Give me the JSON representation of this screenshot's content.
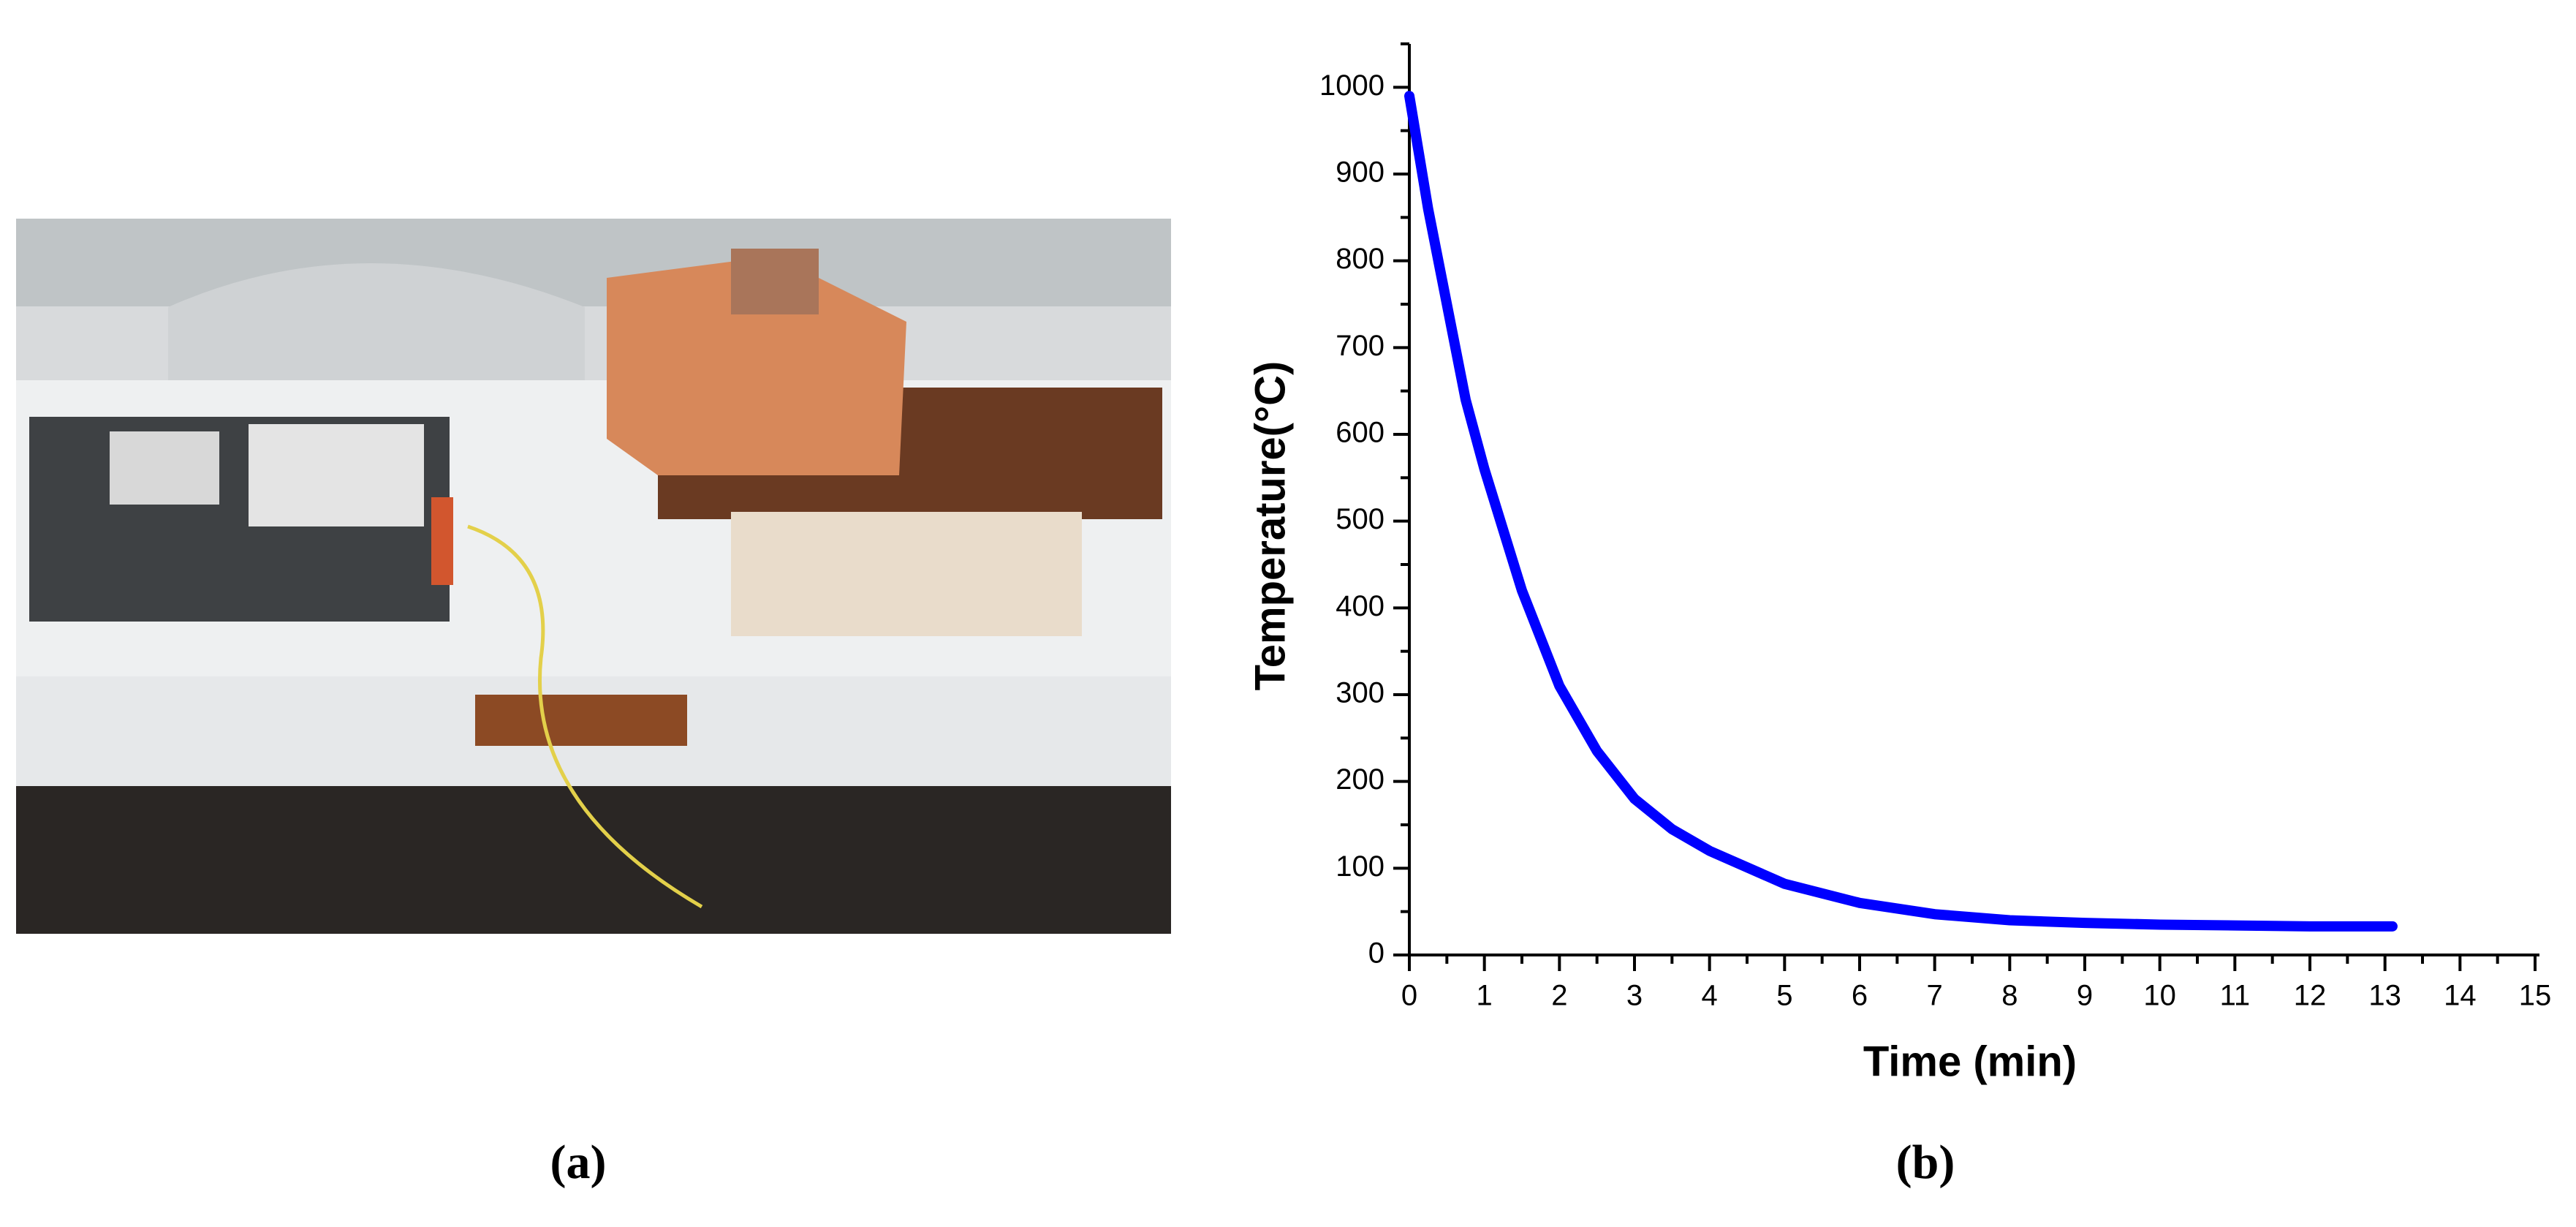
{
  "panel_labels": [
    "(a)",
    "(b)"
  ],
  "chart_data": {
    "type": "line",
    "xlabel": "Time (min)",
    "ylabel": "Temperature(°C)",
    "x": [
      0,
      0.25,
      0.5,
      0.75,
      1,
      1.5,
      2,
      2.5,
      3,
      3.5,
      4,
      5,
      6,
      7,
      8,
      9,
      10,
      11,
      12,
      13.1
    ],
    "values": [
      990,
      860,
      750,
      640,
      560,
      420,
      310,
      235,
      180,
      145,
      120,
      82,
      60,
      47,
      40,
      37,
      35,
      34,
      33,
      33
    ],
    "color": "#0000ff",
    "xlim": [
      0,
      15
    ],
    "xticks": [
      0,
      1,
      2,
      3,
      4,
      5,
      6,
      7,
      8,
      9,
      10,
      11,
      12,
      13,
      14,
      15
    ],
    "xminorticks": [
      0.5,
      1.5,
      2.5,
      3.5,
      4.5,
      5.5,
      6.5,
      7.5,
      8.5,
      9.5,
      10.5,
      11.5,
      12.5,
      13.5,
      14.5
    ],
    "ylim": [
      0,
      1050
    ],
    "yticks": [
      0,
      100,
      200,
      300,
      400,
      500,
      600,
      700,
      800,
      900,
      1000
    ],
    "yminorticks": [
      50,
      150,
      250,
      350,
      450,
      550,
      650,
      750,
      850,
      950,
      1050
    ],
    "grid": false
  }
}
